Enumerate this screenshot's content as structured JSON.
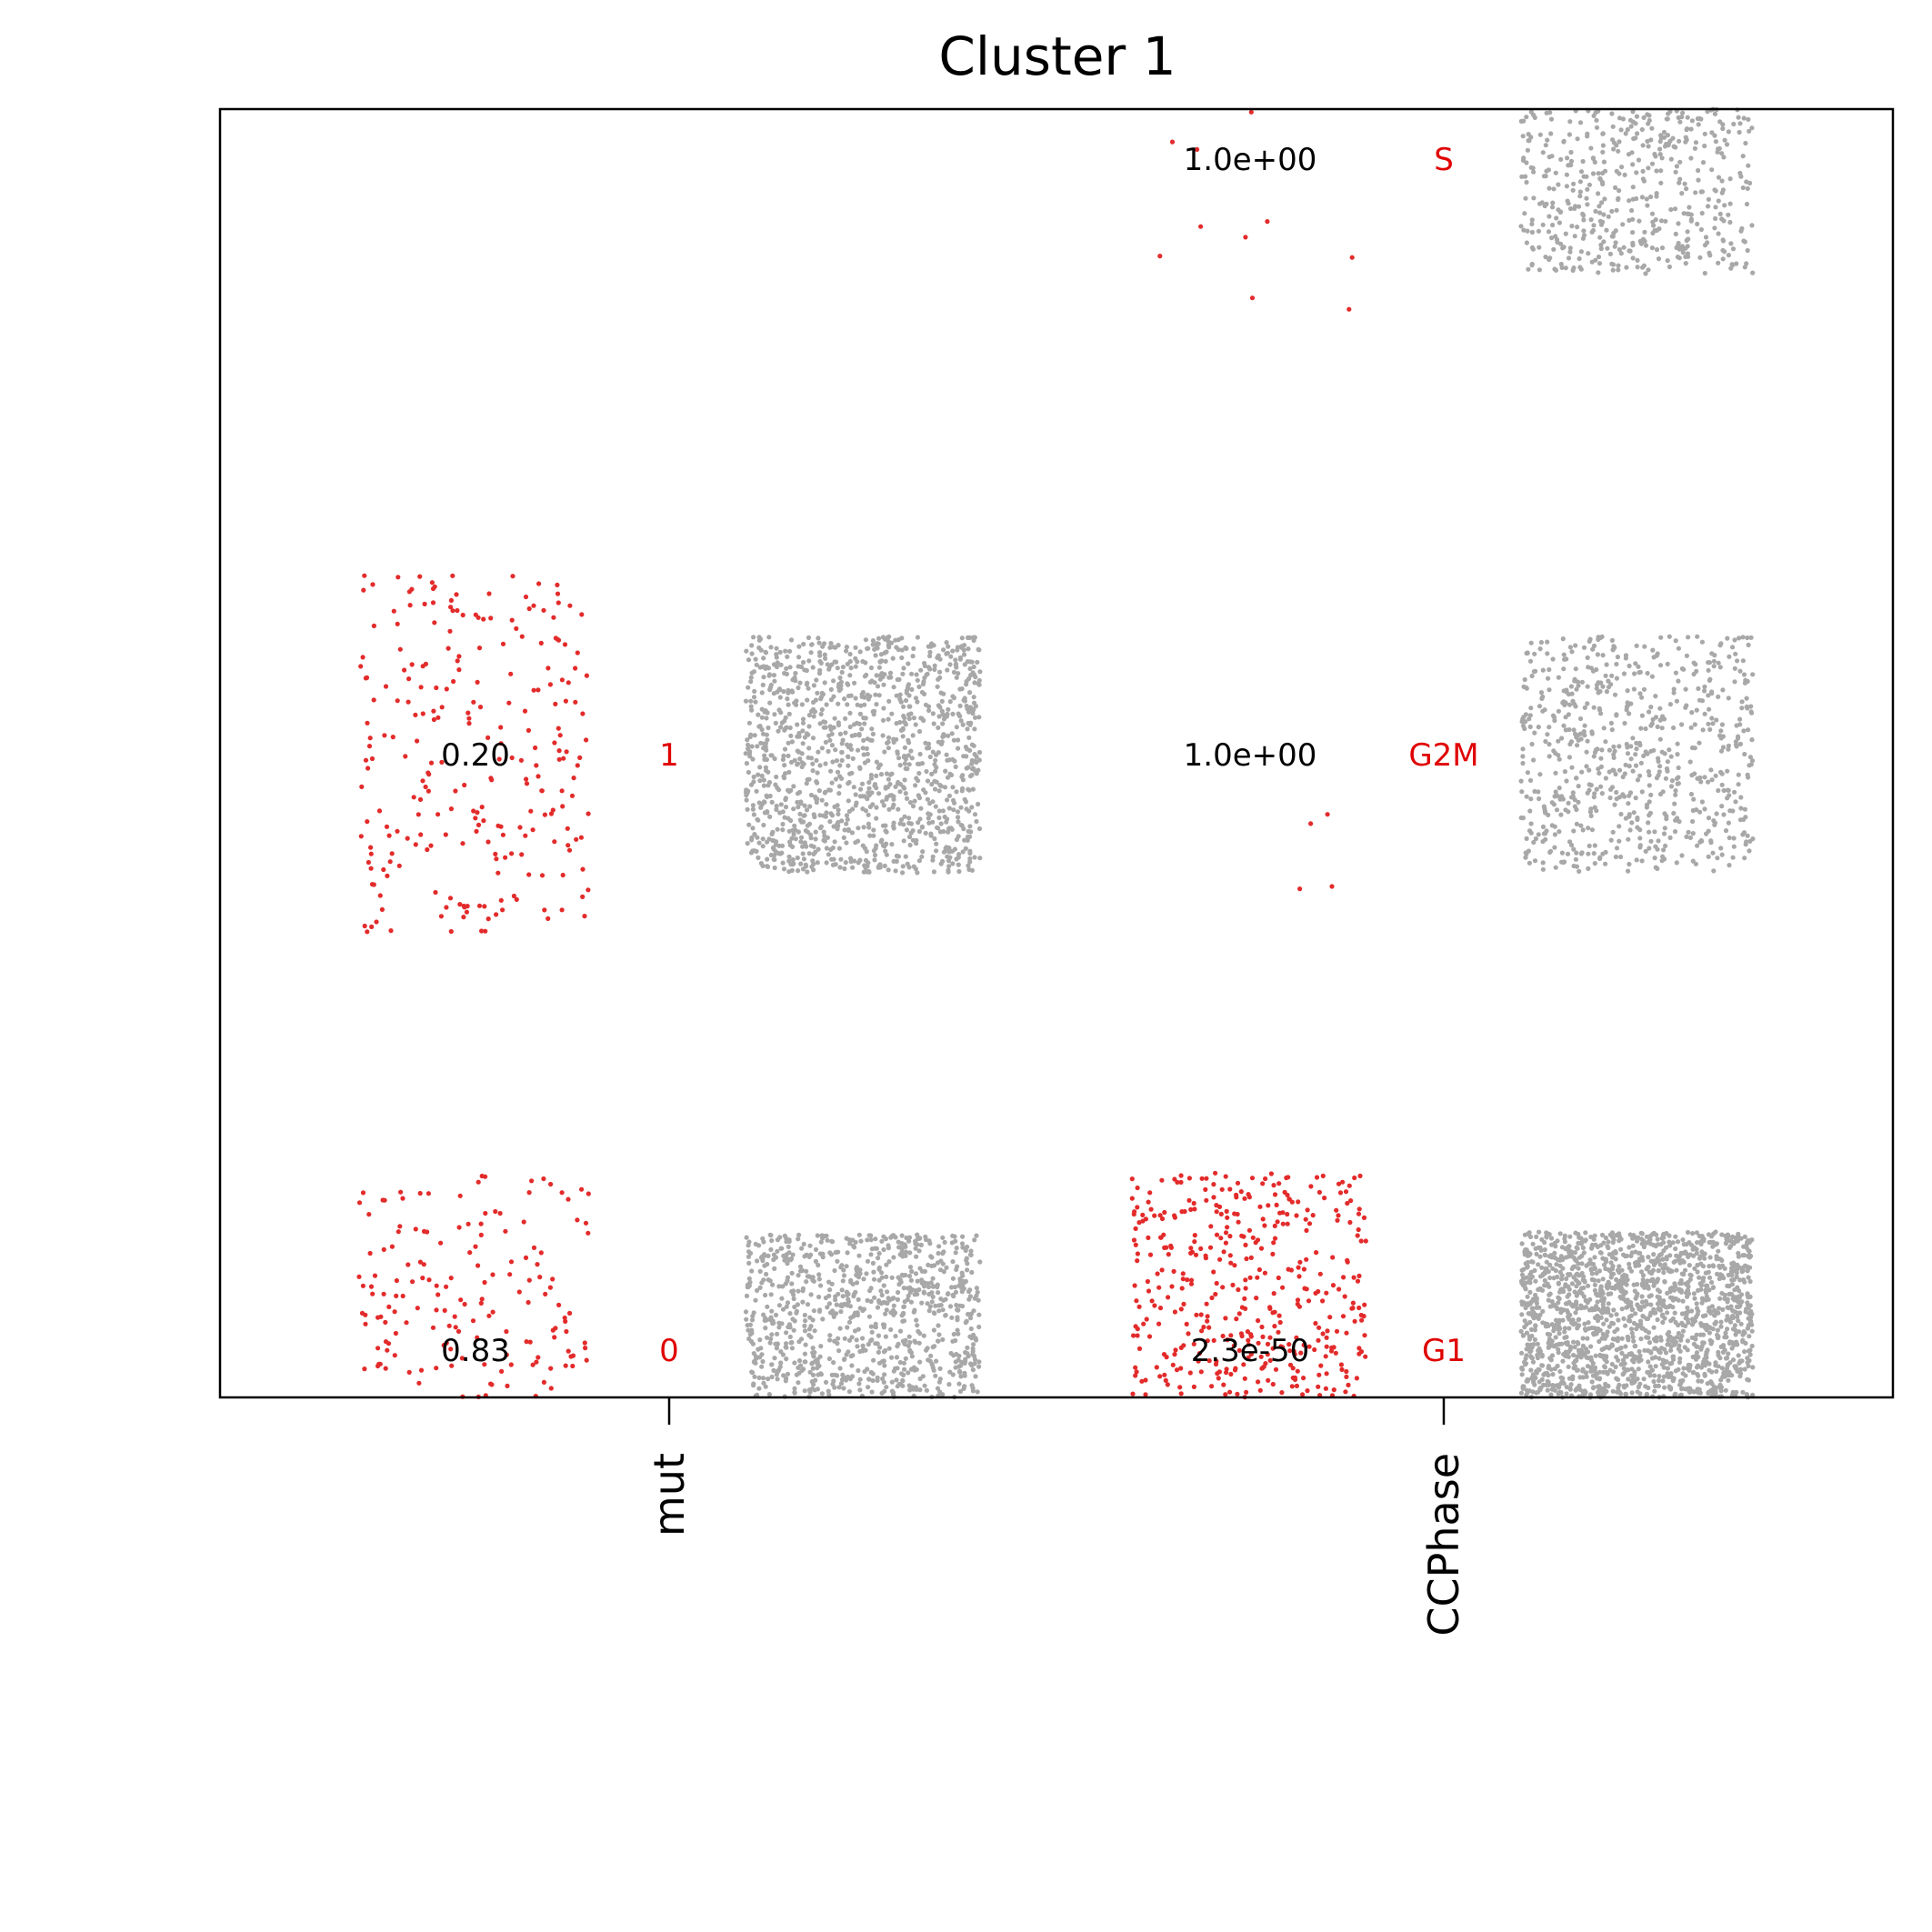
{
  "chart_data": {
    "type": "scatter",
    "title": "Cluster 1",
    "variables": [
      {
        "name": "mut",
        "levels": [
          {
            "label": "0",
            "pvalue": "0.83",
            "red_points": 160,
            "gray_points": 900
          },
          {
            "label": "1",
            "pvalue": "0.20",
            "red_points": 250,
            "gray_points": 1250
          }
        ]
      },
      {
        "name": "CCPhase",
        "levels": [
          {
            "label": "G1",
            "pvalue": "2.3e-50",
            "red_points": 420,
            "gray_points": 1700
          },
          {
            "label": "G2M",
            "pvalue": "1.0e+00",
            "red_points": 4,
            "gray_points": 700
          },
          {
            "label": "S",
            "pvalue": "1.0e+00",
            "red_points": 10,
            "gray_points": 500
          }
        ]
      }
    ],
    "colors": {
      "red": "#e32b2b",
      "gray": "#a8a8a8",
      "level_label": "#e00000"
    }
  }
}
